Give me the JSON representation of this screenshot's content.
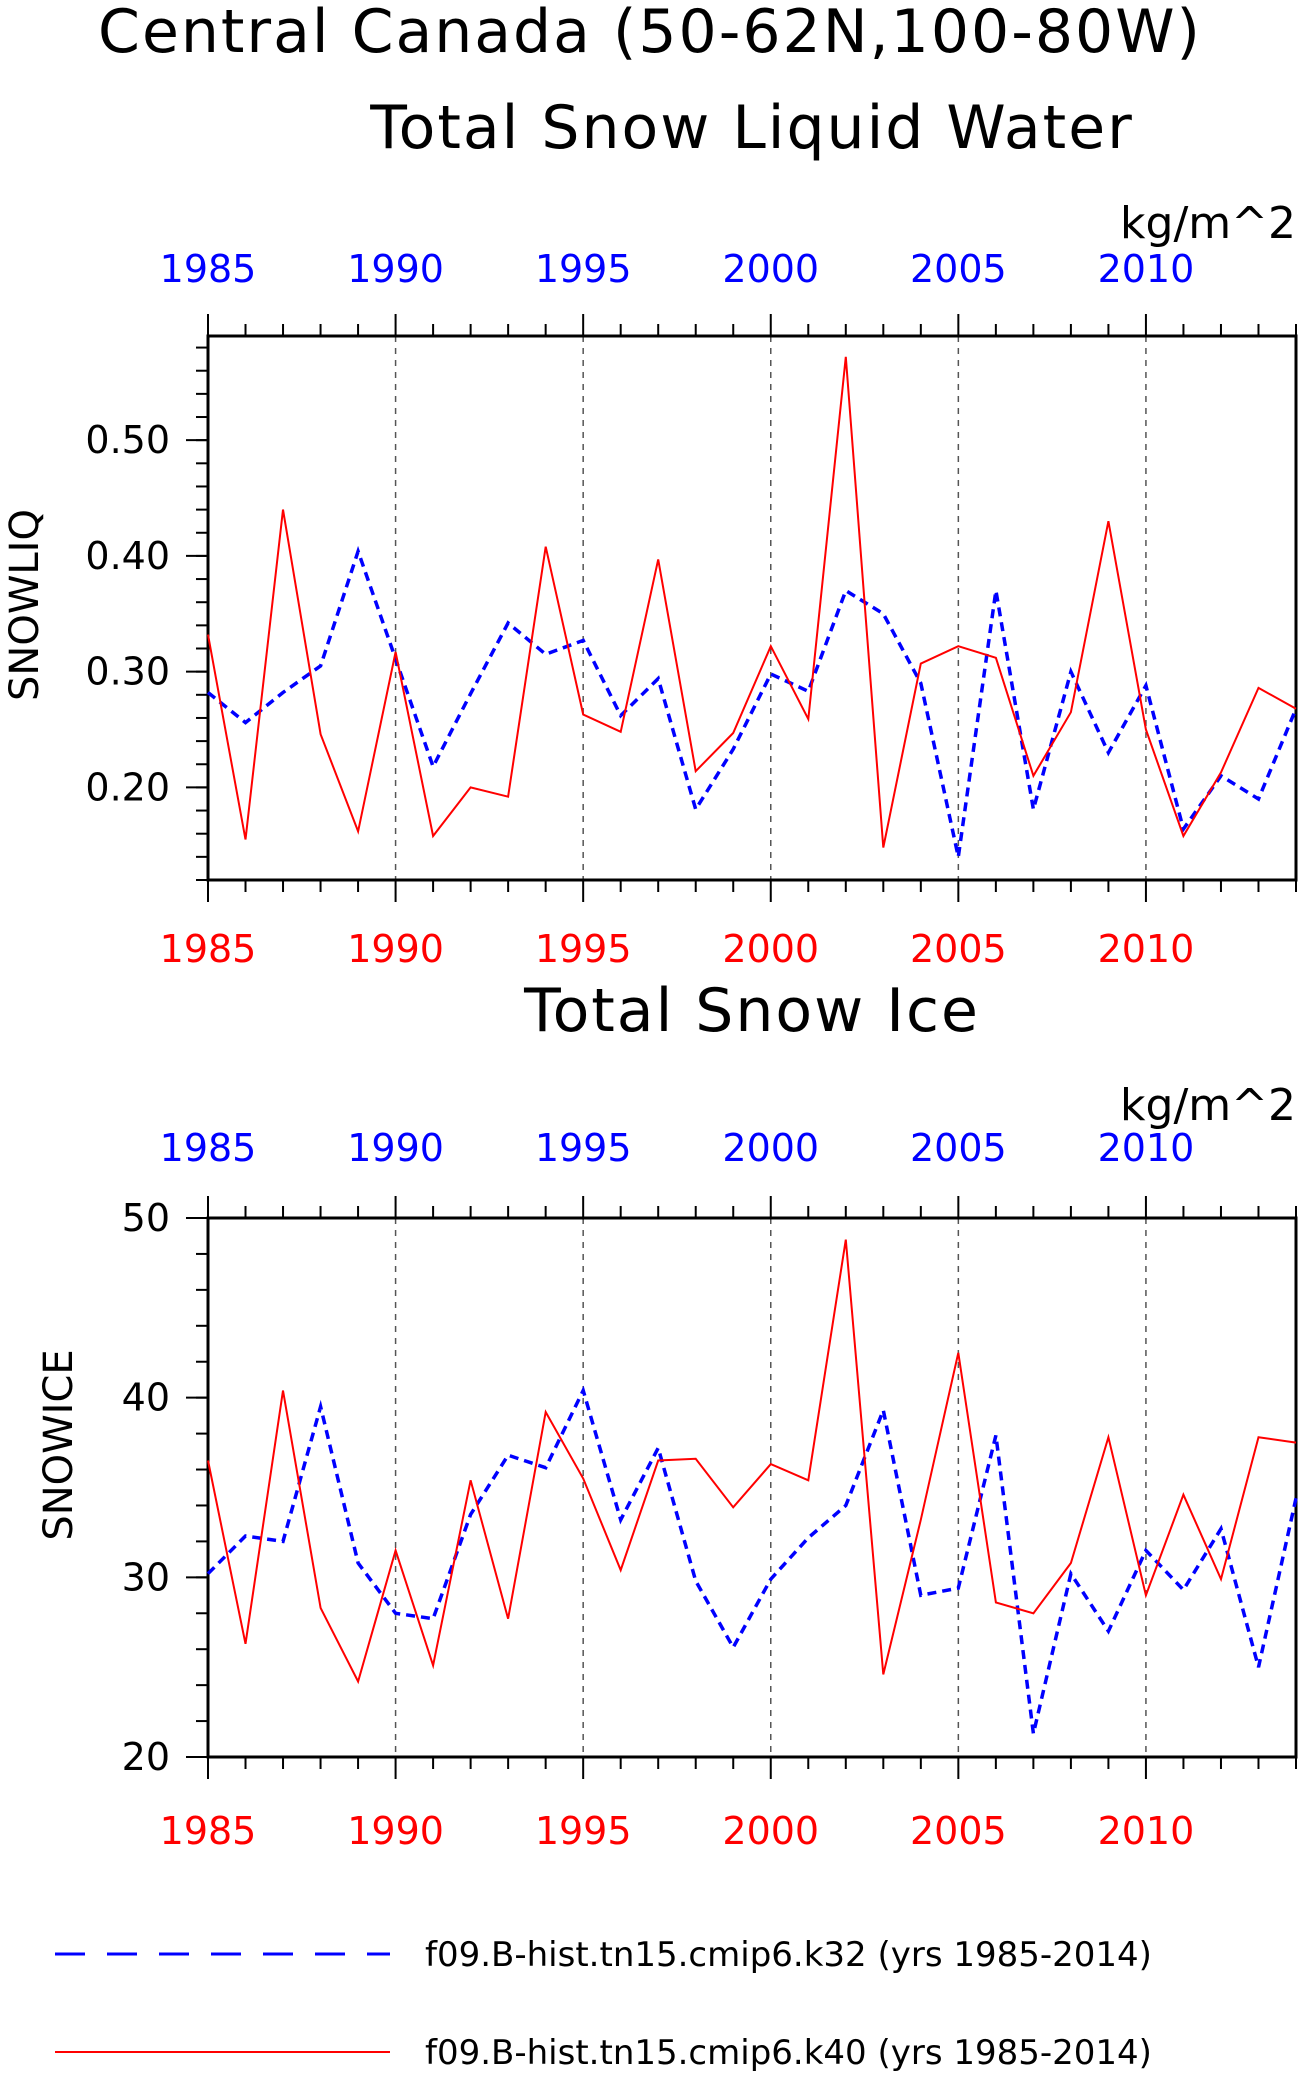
{
  "header": {
    "title_line1": "Central Canada (50-62N,100-80W)"
  },
  "chart_data": [
    {
      "type": "line",
      "title": "Total Snow Liquid Water",
      "units": "kg/m^2",
      "ylabel": "SNOWLIQ",
      "xlim": [
        1985,
        2014
      ],
      "ylim": [
        0.12,
        0.59
      ],
      "yticks": [
        "0.20",
        "0.30",
        "0.40",
        "0.50"
      ],
      "ytick_values": [
        0.2,
        0.3,
        0.4,
        0.5
      ],
      "yminor_step": 0.02,
      "xticks": [
        1985,
        1990,
        1995,
        2000,
        2005,
        2010
      ],
      "grid_x": [
        1990,
        1995,
        2000,
        2005,
        2010
      ],
      "top_axis_color": "#0000ff",
      "bottom_axis_color": "#ff0000",
      "x": [
        1985,
        1986,
        1987,
        1988,
        1989,
        1990,
        1991,
        1992,
        1993,
        1994,
        1995,
        1996,
        1997,
        1998,
        1999,
        2000,
        2001,
        2002,
        2003,
        2004,
        2005,
        2006,
        2007,
        2008,
        2009,
        2010,
        2011,
        2012,
        2013,
        2014
      ],
      "series": [
        {
          "name": "f09.B-hist.tn15.cmip6.k32 (yrs 1985-2014)",
          "color": "#0000ff",
          "style": "dashed",
          "values": [
            0.282,
            0.256,
            0.282,
            0.305,
            0.404,
            0.311,
            0.218,
            0.281,
            0.342,
            0.315,
            0.327,
            0.262,
            0.294,
            0.181,
            0.233,
            0.298,
            0.283,
            0.37,
            0.35,
            0.29,
            0.14,
            0.37,
            0.181,
            0.3,
            0.23,
            0.288,
            0.164,
            0.21,
            0.19,
            0.268
          ]
        },
        {
          "name": "f09.B-hist.tn15.cmip6.k40 (yrs 1985-2014)",
          "color": "#ff0000",
          "style": "solid",
          "values": [
            0.332,
            0.155,
            0.44,
            0.246,
            0.162,
            0.317,
            0.158,
            0.2,
            0.192,
            0.408,
            0.263,
            0.248,
            0.397,
            0.214,
            0.247,
            0.322,
            0.259,
            0.572,
            0.148,
            0.307,
            0.322,
            0.312,
            0.21,
            0.265,
            0.43,
            0.25,
            0.158,
            0.213,
            0.286,
            0.268
          ]
        }
      ]
    },
    {
      "type": "line",
      "title": "Total Snow Ice",
      "units": "kg/m^2",
      "ylabel": "SNOWICE",
      "xlim": [
        1985,
        2014
      ],
      "ylim": [
        20,
        50
      ],
      "yticks": [
        "20",
        "30",
        "40",
        "50"
      ],
      "ytick_values": [
        20,
        30,
        40,
        50
      ],
      "yminor_step": 2,
      "xticks": [
        1985,
        1990,
        1995,
        2000,
        2005,
        2010
      ],
      "grid_x": [
        1990,
        1995,
        2000,
        2005,
        2010
      ],
      "top_axis_color": "#0000ff",
      "bottom_axis_color": "#ff0000",
      "x": [
        1985,
        1986,
        1987,
        1988,
        1989,
        1990,
        1991,
        1992,
        1993,
        1994,
        1995,
        1996,
        1997,
        1998,
        1999,
        2000,
        2001,
        2002,
        2003,
        2004,
        2005,
        2006,
        2007,
        2008,
        2009,
        2010,
        2011,
        2012,
        2013,
        2014
      ],
      "series": [
        {
          "name": "f09.B-hist.tn15.cmip6.k32 (yrs 1985-2014)",
          "color": "#0000ff",
          "style": "dashed",
          "values": [
            30.2,
            32.3,
            32.0,
            39.5,
            30.8,
            28.0,
            27.7,
            33.5,
            36.8,
            36.1,
            40.4,
            33.2,
            37.2,
            29.8,
            26.1,
            29.9,
            32.2,
            34.0,
            39.3,
            29.0,
            29.4,
            37.9,
            21.3,
            30.2,
            27.0,
            31.5,
            29.3,
            32.7,
            25.0,
            34.4
          ]
        },
        {
          "name": "f09.B-hist.tn15.cmip6.k40 (yrs 1985-2014)",
          "color": "#ff0000",
          "style": "solid",
          "values": [
            36.5,
            26.3,
            40.4,
            28.3,
            24.2,
            31.5,
            25.1,
            35.4,
            27.7,
            39.2,
            35.5,
            30.4,
            36.5,
            36.6,
            33.9,
            36.3,
            35.4,
            48.8,
            24.6,
            33.2,
            42.5,
            28.6,
            28.0,
            30.8,
            37.8,
            29.0,
            34.6,
            29.9,
            37.8,
            37.5
          ]
        }
      ]
    }
  ],
  "legend": [
    {
      "label": "f09.B-hist.tn15.cmip6.k32 (yrs 1985-2014)",
      "color": "#0000ff",
      "style": "dashed"
    },
    {
      "label": "f09.B-hist.tn15.cmip6.k40 (yrs 1985-2014)",
      "color": "#ff0000",
      "style": "solid"
    }
  ]
}
